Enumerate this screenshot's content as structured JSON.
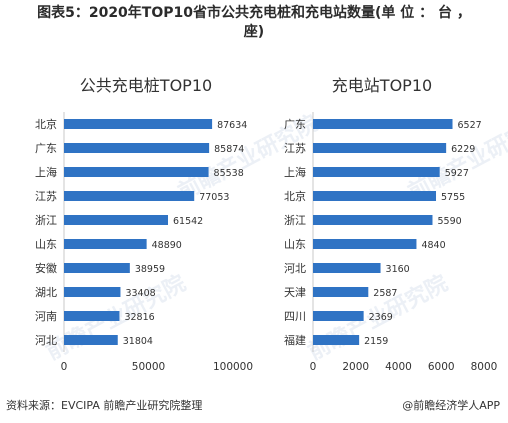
{
  "figure": {
    "title_line1": "图表5：2020年TOP10省市公共充电桩和充电站数量(单 位 ： 台 ，",
    "title_line2": "座)",
    "source": "资料来源：EVCIPA 前瞻产业研究院整理",
    "brand": "@前瞻经济学人APP",
    "watermark": "前瞻产业研究院"
  },
  "colors": {
    "bar": "#2f73c4",
    "axis": "#c8c8c8",
    "text": "#333333"
  },
  "chart_data": [
    {
      "type": "bar",
      "orientation": "horizontal",
      "title": "公共充电桩TOP10",
      "categories": [
        "北京",
        "广东",
        "上海",
        "江苏",
        "浙江",
        "山东",
        "安徽",
        "湖北",
        "河南",
        "河北"
      ],
      "values": [
        87634,
        85874,
        85538,
        77053,
        61542,
        48890,
        38959,
        33408,
        32816,
        31804
      ],
      "xlim": [
        0,
        100000
      ],
      "xticks": [
        0,
        50000,
        100000
      ],
      "xtick_labels": [
        "0",
        "50000",
        "100000"
      ],
      "data_labels": [
        "87634",
        "85874",
        "85538",
        "77053",
        "61542",
        "48890",
        "38959",
        "33408",
        "32816",
        "31804"
      ],
      "grid": false
    },
    {
      "type": "bar",
      "orientation": "horizontal",
      "title": "充电站TOP10",
      "categories": [
        "广东",
        "江苏",
        "上海",
        "北京",
        "浙江",
        "山东",
        "河北",
        "天津",
        "四川",
        "福建"
      ],
      "values": [
        6527,
        6229,
        5927,
        5755,
        5590,
        4840,
        3160,
        2587,
        2369,
        2159
      ],
      "xlim": [
        0,
        8000
      ],
      "xticks": [
        0,
        2000,
        4000,
        6000,
        8000
      ],
      "xtick_labels": [
        "0",
        "2000",
        "4000",
        "6000",
        "8000"
      ],
      "data_labels": [
        "6527",
        "6229",
        "5927",
        "5755",
        "5590",
        "4840",
        "3160",
        "2587",
        "2369",
        "2159"
      ],
      "grid": false
    }
  ]
}
